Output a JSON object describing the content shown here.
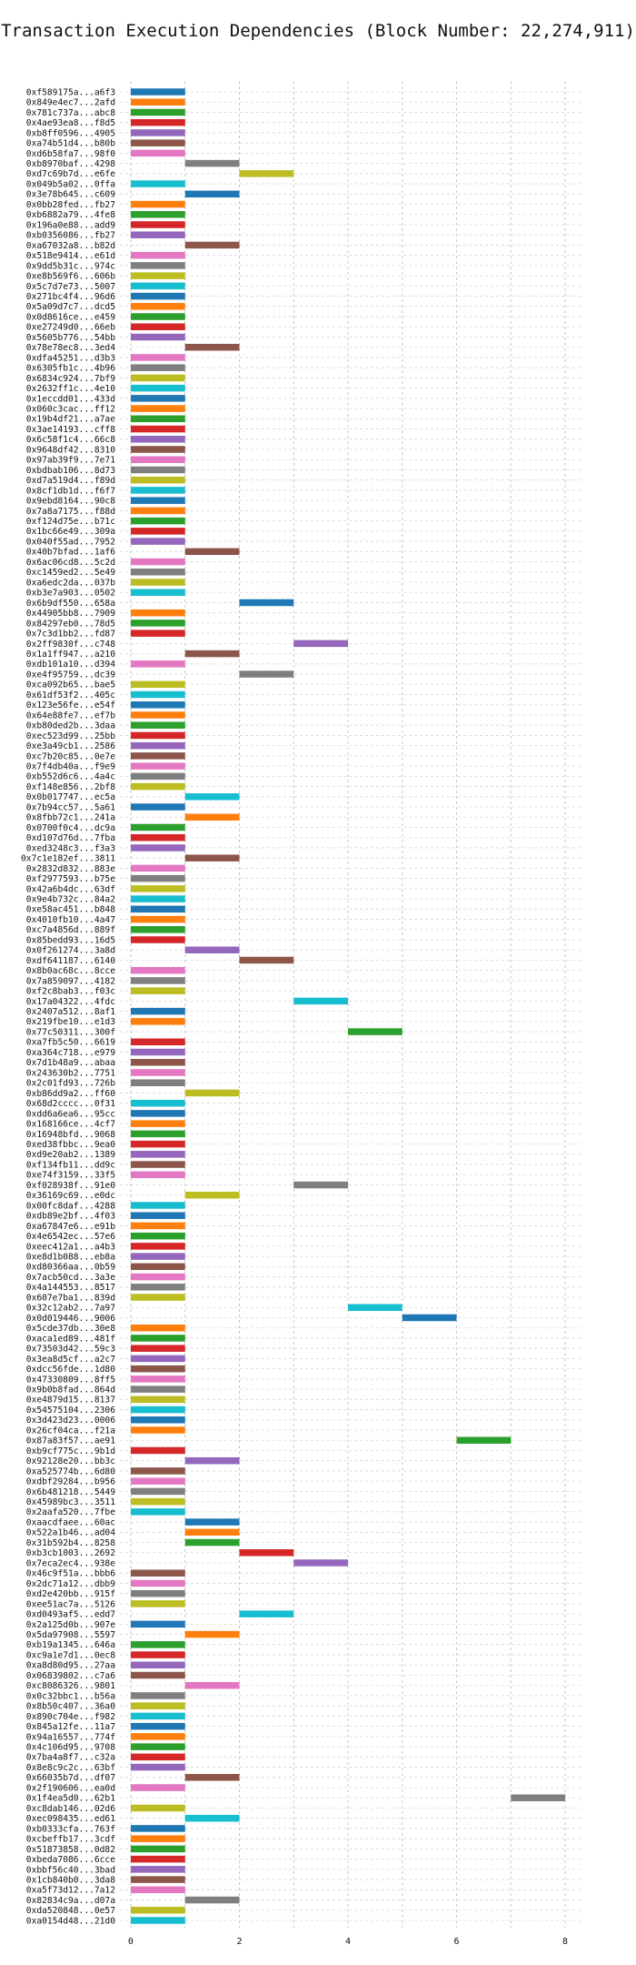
{
  "chart_data": {
    "type": "bar",
    "orientation": "horizontal",
    "title": "Transaction Execution Dependencies (Block Number: 22,274,911)",
    "xlabel": "",
    "ylabel": "",
    "xlim": [
      -0.2,
      8.3
    ],
    "xticks": [
      0,
      2,
      4,
      6,
      8
    ],
    "grid": true,
    "colors": [
      "#1f77b4",
      "#ff7f0e",
      "#2ca02c",
      "#d62728",
      "#9467bd",
      "#8c564b",
      "#e377c2",
      "#7f7f7f",
      "#bcbd22",
      "#17becf"
    ],
    "categories": [
      "0xf589175a...a6f3",
      "0x849e4ec7...2afd",
      "0x781c737a...abc8",
      "0x4ae93ea8...f8d5",
      "0xb8ff0596...4905",
      "0xa74b51d4...b80b",
      "0xd6b58fa7...98f0",
      "0xb8970baf...4298",
      "0xd7c69b7d...e6fe",
      "0x049b5a02...0ffa",
      "0x3e78b645...c609",
      "0x0bb28fed...fb27",
      "0xb6882a79...4fe8",
      "0x196a0e88...add9",
      "0xb0356086...fb27",
      "0xa67032a8...b82d",
      "0x518e9414...e61d",
      "0x9dd5b31c...974c",
      "0xe8b569f6...606b",
      "0x5c7d7e73...5007",
      "0x271bc4f4...96d6",
      "0x5a09d7c7...dcd5",
      "0x0d8616ce...e459",
      "0xe27249d0...66eb",
      "0x5605b776...54bb",
      "0x78e78ec8...3ed4",
      "0xdfa45251...d3b3",
      "0x6305fb1c...4b96",
      "0x6834c924...7bf9",
      "0x2632ff1c...4e10",
      "0x1eccdd01...433d",
      "0x060c3cac...ff12",
      "0x19b4df21...a7ae",
      "0x3ae14193...cff8",
      "0x6c58f1c4...66c8",
      "0x9648df42...8310",
      "0x97ab39f9...7e71",
      "0xbdbab106...8d73",
      "0xd7a519d4...f89d",
      "0x8cf1db1d...f6f7",
      "0x9ebd8164...90c8",
      "0x7a8a7175...f88d",
      "0xf124d75e...b71c",
      "0x1bc66e49...309a",
      "0x040f55ad...7952",
      "0x40b7bfad...1af6",
      "0x6ac06cd8...5c2d",
      "0xc1459ed2...5e49",
      "0xa6edc2da...037b",
      "0xb3e7a903...0502",
      "0x6b9df550...658a",
      "0x44905bb8...7909",
      "0x84297eb0...78d5",
      "0x7c3d1bb2...fd87",
      "0x2ff9830f...c748",
      "0x1a1ff947...a210",
      "0xdb101a10...d394",
      "0xe4f95759...dc39",
      "0xca092b65...bae5",
      "0x61df53f2...405c",
      "0x123e56fe...e54f",
      "0x64e88fe7...ef7b",
      "0xb80ded2b...3daa",
      "0xec523d99...25bb",
      "0xe3a49cb1...2586",
      "0xc7b20c85...0e7e",
      "0x7f4db40a...f9e9",
      "0xb552d6c6...4a4c",
      "0xf148e856...2bf8",
      "0x0b017747...ec5a",
      "0x7b94cc57...5a61",
      "0x8fbb72c1...241a",
      "0x0700f0c4...dc9a",
      "0xd107d76d...7fba",
      "0xed3248c3...f3a3",
      "0x7c1e182ef...3811",
      "0x2832d832...883e",
      "0xf2977593...b75e",
      "0x42a6b4dc...63df",
      "0x9e4b732c...84a2",
      "0xe58ac451...b848",
      "0x4010fb10...4a47",
      "0xc7a4856d...889f",
      "0x85bedd93...16d5",
      "0x0f261274...3a8d",
      "0xdf641187...6140",
      "0x8b0ac68c...8cce",
      "0x7a859097...4182",
      "0xf2c8bab3...f03c",
      "0x17a04322...4fdc",
      "0x2407a512...8af1",
      "0x219fbe10...e1d3",
      "0x77c50311...300f",
      "0xa7fb5c50...6619",
      "0xa364c718...e979",
      "0x7d1b48a9...abaa",
      "0x243630b2...7751",
      "0x2c01fd93...726b",
      "0xb86dd9a2...ff60",
      "0x68d2cccc...0f31",
      "0xdd6a6ea6...95cc",
      "0x168166ce...4cf7",
      "0x16948bfd...9068",
      "0xed38fbbc...9ea0",
      "0xd9e20ab2...1389",
      "0xf134fb11...dd9c",
      "0xe74f3159...33f5",
      "0xf028938f...91e0",
      "0x36169c69...e0dc",
      "0x00fc8daf...4288",
      "0xdb89e2bf...4f03",
      "0xa67847e6...e91b",
      "0x4e6542ec...57e6",
      "0xeec412a1...a4b3",
      "0xe8d1b088...eb8a",
      "0xd80366aa...0b59",
      "0x7acb50cd...3a3e",
      "0x4a144553...8517",
      "0x607e7ba1...839d",
      "0x32c12ab2...7a97",
      "0x0d019446...9006",
      "0x5cde37db...30e8",
      "0xaca1ed89...481f",
      "0x73503d42...59c3",
      "0x3ea8d5cf...a2c7",
      "0xdcc56fde...1d80",
      "0x47330809...8ff5",
      "0x9b0b8fad...864d",
      "0xe4879d15...8137",
      "0x54575104...2306",
      "0x3d423d23...0006",
      "0x26cf04ca...f21a",
      "0x87a83f57...ae91",
      "0xb9cf775c...9b1d",
      "0x92128e20...bb3c",
      "0xa525774b...6d80",
      "0xdbf29284...b956",
      "0x6b481218...5449",
      "0x45989bc3...3511",
      "0x2aafa520...7fbe",
      "0xaacdfaee...60ac",
      "0x522a1b46...ad04",
      "0x31b592b4...8258",
      "0xb3cb1003...2692",
      "0x7eca2ec4...938e",
      "0x46c9f51a...bbb6",
      "0x2dc71a12...dbb9",
      "0xd2e420bb...915f",
      "0xee51ac7a...5126",
      "0xd0493af5...edd7",
      "0x2a125d0b...907e",
      "0x5da97908...5597",
      "0xb19a1345...646a",
      "0xc9a1e7d1...0ec8",
      "0xa8d80d95...27aa",
      "0x06839802...c7a6",
      "0xc8086326...9801",
      "0x0c32bbc1...b56a",
      "0x8b50c407...36a0",
      "0x890c704e...f982",
      "0x845a12fe...11a7",
      "0x94a16557...774f",
      "0x4c106d95...9708",
      "0x7ba4a8f7...c32a",
      "0x8e8c9c2c...63bf",
      "0x66035b7d...df07",
      "0x2f190606...ea0d",
      "0x1f4ea5d0...62b1",
      "0xc8dab146...02d6",
      "0xec098435...ed61",
      "0xb0333cfa...763f",
      "0xcbeffb17...3cdf",
      "0x51873858...0d82",
      "0xbeda7086...6cce",
      "0xbbf56c40...3bad",
      "0x1cb840b0...3da8",
      "0xa5f73d12...7a12",
      "0x82834c9a...d07a",
      "0xda520848...0e57",
      "0xa0154d48...21d0"
    ],
    "values": [
      [
        0,
        1
      ],
      [
        0,
        1
      ],
      [
        0,
        1
      ],
      [
        0,
        1
      ],
      [
        0,
        1
      ],
      [
        0,
        1
      ],
      [
        0,
        1
      ],
      [
        1,
        2
      ],
      [
        2,
        3
      ],
      [
        0,
        1
      ],
      [
        1,
        2
      ],
      [
        0,
        1
      ],
      [
        0,
        1
      ],
      [
        0,
        1
      ],
      [
        0,
        1
      ],
      [
        1,
        2
      ],
      [
        0,
        1
      ],
      [
        0,
        1
      ],
      [
        0,
        1
      ],
      [
        0,
        1
      ],
      [
        0,
        1
      ],
      [
        0,
        1
      ],
      [
        0,
        1
      ],
      [
        0,
        1
      ],
      [
        0,
        1
      ],
      [
        1,
        2
      ],
      [
        0,
        1
      ],
      [
        0,
        1
      ],
      [
        0,
        1
      ],
      [
        0,
        1
      ],
      [
        0,
        1
      ],
      [
        0,
        1
      ],
      [
        0,
        1
      ],
      [
        0,
        1
      ],
      [
        0,
        1
      ],
      [
        0,
        1
      ],
      [
        0,
        1
      ],
      [
        0,
        1
      ],
      [
        0,
        1
      ],
      [
        0,
        1
      ],
      [
        0,
        1
      ],
      [
        0,
        1
      ],
      [
        0,
        1
      ],
      [
        0,
        1
      ],
      [
        0,
        1
      ],
      [
        1,
        2
      ],
      [
        0,
        1
      ],
      [
        0,
        1
      ],
      [
        0,
        1
      ],
      [
        0,
        1
      ],
      [
        2,
        3
      ],
      [
        0,
        1
      ],
      [
        0,
        1
      ],
      [
        0,
        1
      ],
      [
        3,
        4
      ],
      [
        1,
        2
      ],
      [
        0,
        1
      ],
      [
        2,
        3
      ],
      [
        0,
        1
      ],
      [
        0,
        1
      ],
      [
        0,
        1
      ],
      [
        0,
        1
      ],
      [
        0,
        1
      ],
      [
        0,
        1
      ],
      [
        0,
        1
      ],
      [
        0,
        1
      ],
      [
        0,
        1
      ],
      [
        0,
        1
      ],
      [
        0,
        1
      ],
      [
        1,
        2
      ],
      [
        0,
        1
      ],
      [
        1,
        2
      ],
      [
        0,
        1
      ],
      [
        0,
        1
      ],
      [
        0,
        1
      ],
      [
        1,
        2
      ],
      [
        0,
        1
      ],
      [
        0,
        1
      ],
      [
        0,
        1
      ],
      [
        0,
        1
      ],
      [
        0,
        1
      ],
      [
        0,
        1
      ],
      [
        0,
        1
      ],
      [
        0,
        1
      ],
      [
        1,
        2
      ],
      [
        2,
        3
      ],
      [
        0,
        1
      ],
      [
        0,
        1
      ],
      [
        0,
        1
      ],
      [
        3,
        4
      ],
      [
        0,
        1
      ],
      [
        0,
        1
      ],
      [
        4,
        5
      ],
      [
        0,
        1
      ],
      [
        0,
        1
      ],
      [
        0,
        1
      ],
      [
        0,
        1
      ],
      [
        0,
        1
      ],
      [
        1,
        2
      ],
      [
        0,
        1
      ],
      [
        0,
        1
      ],
      [
        0,
        1
      ],
      [
        0,
        1
      ],
      [
        0,
        1
      ],
      [
        0,
        1
      ],
      [
        0,
        1
      ],
      [
        0,
        1
      ],
      [
        3,
        4
      ],
      [
        1,
        2
      ],
      [
        0,
        1
      ],
      [
        0,
        1
      ],
      [
        0,
        1
      ],
      [
        0,
        1
      ],
      [
        0,
        1
      ],
      [
        0,
        1
      ],
      [
        0,
        1
      ],
      [
        0,
        1
      ],
      [
        0,
        1
      ],
      [
        0,
        1
      ],
      [
        4,
        5
      ],
      [
        5,
        6
      ],
      [
        0,
        1
      ],
      [
        0,
        1
      ],
      [
        0,
        1
      ],
      [
        0,
        1
      ],
      [
        0,
        1
      ],
      [
        0,
        1
      ],
      [
        0,
        1
      ],
      [
        0,
        1
      ],
      [
        0,
        1
      ],
      [
        0,
        1
      ],
      [
        0,
        1
      ],
      [
        6,
        7
      ],
      [
        0,
        1
      ],
      [
        1,
        2
      ],
      [
        0,
        1
      ],
      [
        0,
        1
      ],
      [
        0,
        1
      ],
      [
        0,
        1
      ],
      [
        0,
        1
      ],
      [
        1,
        2
      ],
      [
        1,
        2
      ],
      [
        1,
        2
      ],
      [
        2,
        3
      ],
      [
        3,
        4
      ],
      [
        0,
        1
      ],
      [
        0,
        1
      ],
      [
        0,
        1
      ],
      [
        0,
        1
      ],
      [
        2,
        3
      ],
      [
        0,
        1
      ],
      [
        1,
        2
      ],
      [
        0,
        1
      ],
      [
        0,
        1
      ],
      [
        0,
        1
      ],
      [
        0,
        1
      ],
      [
        1,
        2
      ],
      [
        0,
        1
      ],
      [
        0,
        1
      ],
      [
        0,
        1
      ],
      [
        0,
        1
      ],
      [
        0,
        1
      ],
      [
        0,
        1
      ],
      [
        0,
        1
      ],
      [
        0,
        1
      ],
      [
        1,
        2
      ],
      [
        0,
        1
      ],
      [
        7,
        8
      ],
      [
        0,
        1
      ],
      [
        1,
        2
      ],
      [
        0,
        1
      ],
      [
        0,
        1
      ],
      [
        0,
        1
      ],
      [
        0,
        1
      ],
      [
        0,
        1
      ],
      [
        0,
        1
      ],
      [
        0,
        1
      ],
      [
        1,
        2
      ],
      [
        0,
        1
      ],
      [
        0,
        1
      ]
    ]
  }
}
